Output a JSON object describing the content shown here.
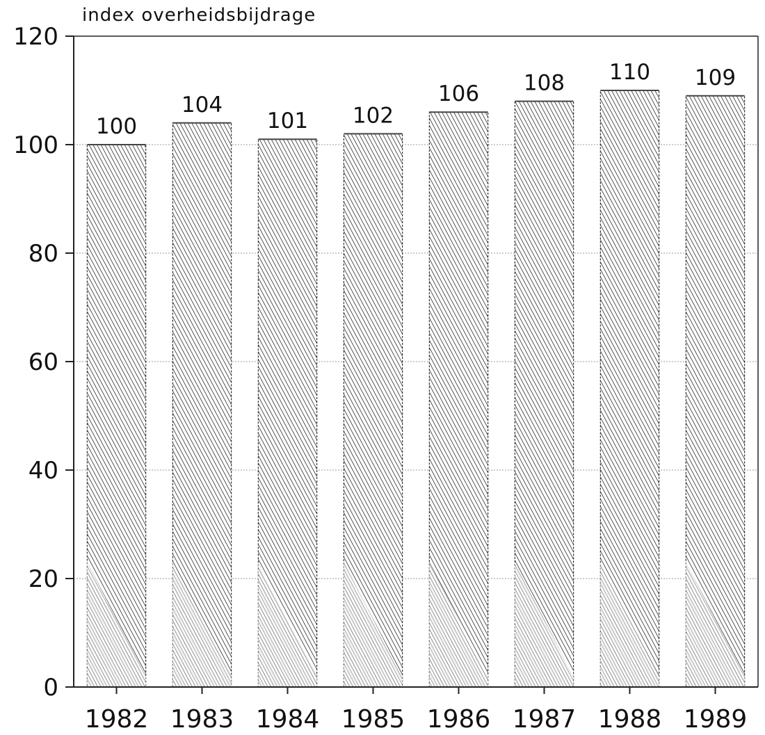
{
  "chart_data": {
    "type": "bar",
    "title": "",
    "ylabel": "index overheidsbijdrage",
    "xlabel": "",
    "ylim": [
      0,
      120
    ],
    "yticks": [
      0,
      20,
      40,
      60,
      80,
      100,
      120
    ],
    "grid": true,
    "categories": [
      "1982",
      "1983",
      "1984",
      "1985",
      "1986",
      "1987",
      "1988",
      "1989"
    ],
    "values": [
      100,
      104,
      101,
      102,
      106,
      108,
      110,
      109
    ],
    "value_labels": [
      "100",
      "104",
      "101",
      "102",
      "106",
      "108",
      "110",
      "109"
    ],
    "colors": {
      "hatch": "#2a2a2a",
      "hatch_light": "#777777",
      "outline": "#333333",
      "grid": "#9a9a9a"
    }
  }
}
